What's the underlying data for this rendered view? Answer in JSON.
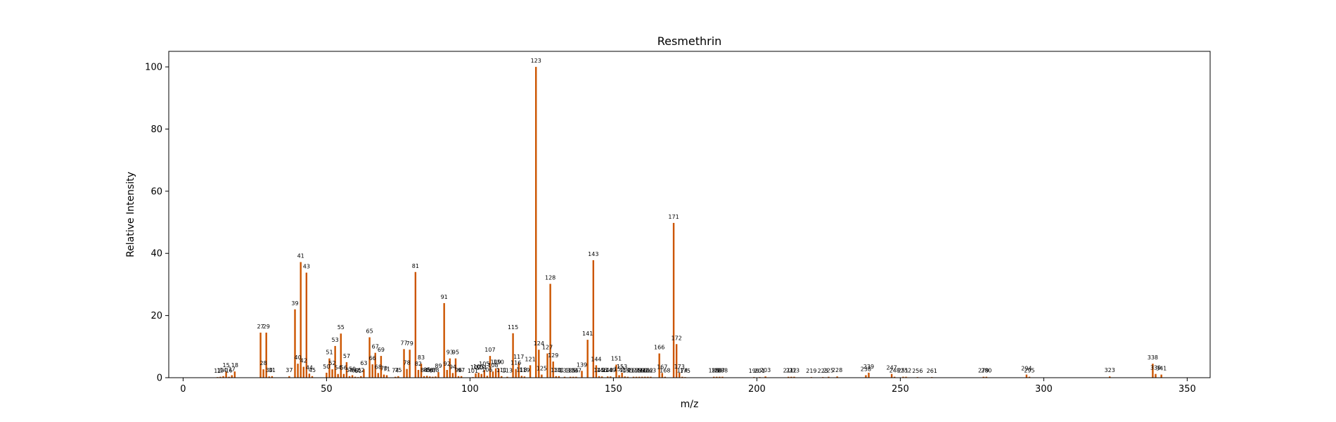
{
  "chart_data": {
    "type": "bar",
    "title": "Resmethrin",
    "xlabel": "m/z",
    "ylabel": "Relative Intensity",
    "xlim": [
      -5,
      358
    ],
    "ylim": [
      0,
      105
    ],
    "xticks": [
      0,
      50,
      100,
      150,
      200,
      250,
      300,
      350
    ],
    "yticks": [
      0,
      20,
      40,
      60,
      80,
      100
    ],
    "bar_color": "#cc5500",
    "peaks": [
      {
        "mz": 12,
        "intensity": 0.2,
        "label": "12"
      },
      {
        "mz": 13,
        "intensity": 0.3,
        "label": "13"
      },
      {
        "mz": 14,
        "intensity": 0.5,
        "label": "14"
      },
      {
        "mz": 15,
        "intensity": 2.0,
        "label": "15"
      },
      {
        "mz": 16,
        "intensity": 0.3,
        "label": "16"
      },
      {
        "mz": 17,
        "intensity": 0.8,
        "label": "17"
      },
      {
        "mz": 18,
        "intensity": 2.0,
        "label": "18"
      },
      {
        "mz": 27,
        "intensity": 14.5,
        "label": "27"
      },
      {
        "mz": 28,
        "intensity": 2.7,
        "label": "28"
      },
      {
        "mz": 29,
        "intensity": 14.5,
        "label": "29"
      },
      {
        "mz": 30,
        "intensity": 0.4,
        "label": "30"
      },
      {
        "mz": 31,
        "intensity": 0.5,
        "label": "31"
      },
      {
        "mz": 37,
        "intensity": 0.5,
        "label": "37"
      },
      {
        "mz": 39,
        "intensity": 22.0,
        "label": "39"
      },
      {
        "mz": 40,
        "intensity": 4.5,
        "label": "40"
      },
      {
        "mz": 41,
        "intensity": 37.2,
        "label": "41"
      },
      {
        "mz": 42,
        "intensity": 3.5,
        "label": "42"
      },
      {
        "mz": 43,
        "intensity": 33.8,
        "label": "43"
      },
      {
        "mz": 44,
        "intensity": 1.3,
        "label": "44"
      },
      {
        "mz": 45,
        "intensity": 0.5,
        "label": "45"
      },
      {
        "mz": 50,
        "intensity": 1.6,
        "label": "50"
      },
      {
        "mz": 51,
        "intensity": 6.2,
        "label": "51"
      },
      {
        "mz": 52,
        "intensity": 2.7,
        "label": "52"
      },
      {
        "mz": 53,
        "intensity": 10.2,
        "label": "53"
      },
      {
        "mz": 54,
        "intensity": 1.2,
        "label": "54"
      },
      {
        "mz": 55,
        "intensity": 14.2,
        "label": "55"
      },
      {
        "mz": 56,
        "intensity": 1.2,
        "label": "56"
      },
      {
        "mz": 57,
        "intensity": 5.0,
        "label": "57"
      },
      {
        "mz": 58,
        "intensity": 0.5,
        "label": "58"
      },
      {
        "mz": 59,
        "intensity": 0.8,
        "label": "59"
      },
      {
        "mz": 60,
        "intensity": 0.3,
        "label": "60"
      },
      {
        "mz": 61,
        "intensity": 0.2,
        "label": "61"
      },
      {
        "mz": 62,
        "intensity": 0.5,
        "label": "62"
      },
      {
        "mz": 63,
        "intensity": 2.7,
        "label": "63"
      },
      {
        "mz": 65,
        "intensity": 13.0,
        "label": "65"
      },
      {
        "mz": 66,
        "intensity": 4.3,
        "label": "66"
      },
      {
        "mz": 67,
        "intensity": 8.0,
        "label": "67"
      },
      {
        "mz": 68,
        "intensity": 1.5,
        "label": "68"
      },
      {
        "mz": 69,
        "intensity": 7.0,
        "label": "69"
      },
      {
        "mz": 70,
        "intensity": 1.0,
        "label": "70"
      },
      {
        "mz": 71,
        "intensity": 0.8,
        "label": "71"
      },
      {
        "mz": 74,
        "intensity": 0.3,
        "label": "74"
      },
      {
        "mz": 75,
        "intensity": 0.5,
        "label": "75"
      },
      {
        "mz": 77,
        "intensity": 9.2,
        "label": "77"
      },
      {
        "mz": 78,
        "intensity": 2.8,
        "label": "78"
      },
      {
        "mz": 79,
        "intensity": 9.0,
        "label": "79"
      },
      {
        "mz": 81,
        "intensity": 34.0,
        "label": "81"
      },
      {
        "mz": 82,
        "intensity": 2.5,
        "label": "82"
      },
      {
        "mz": 83,
        "intensity": 4.5,
        "label": "83"
      },
      {
        "mz": 84,
        "intensity": 0.5,
        "label": "84"
      },
      {
        "mz": 85,
        "intensity": 0.6,
        "label": "85"
      },
      {
        "mz": 86,
        "intensity": 0.4,
        "label": "86"
      },
      {
        "mz": 87,
        "intensity": 0.3,
        "label": "87"
      },
      {
        "mz": 88,
        "intensity": 0.4,
        "label": "88"
      },
      {
        "mz": 89,
        "intensity": 1.8,
        "label": "89"
      },
      {
        "mz": 91,
        "intensity": 24.0,
        "label": "91"
      },
      {
        "mz": 92,
        "intensity": 2.5,
        "label": "92"
      },
      {
        "mz": 93,
        "intensity": 6.2,
        "label": "93"
      },
      {
        "mz": 94,
        "intensity": 1.5,
        "label": "94"
      },
      {
        "mz": 95,
        "intensity": 6.2,
        "label": "95"
      },
      {
        "mz": 96,
        "intensity": 0.5,
        "label": "96"
      },
      {
        "mz": 97,
        "intensity": 0.5,
        "label": "97"
      },
      {
        "mz": 101,
        "intensity": 0.2,
        "label": "101"
      },
      {
        "mz": 102,
        "intensity": 1.4,
        "label": "102"
      },
      {
        "mz": 103,
        "intensity": 1.6,
        "label": "103"
      },
      {
        "mz": 104,
        "intensity": 1.2,
        "label": "104"
      },
      {
        "mz": 105,
        "intensity": 2.5,
        "label": "105"
      },
      {
        "mz": 106,
        "intensity": 0.6,
        "label": "106"
      },
      {
        "mz": 107,
        "intensity": 7.0,
        "label": "107"
      },
      {
        "mz": 108,
        "intensity": 2.0,
        "label": "108"
      },
      {
        "mz": 109,
        "intensity": 3.0,
        "label": "109"
      },
      {
        "mz": 110,
        "intensity": 3.0,
        "label": "110"
      },
      {
        "mz": 111,
        "intensity": 0.5,
        "label": "111"
      },
      {
        "mz": 113,
        "intensity": 0.3,
        "label": "113"
      },
      {
        "mz": 115,
        "intensity": 14.3,
        "label": "115"
      },
      {
        "mz": 116,
        "intensity": 2.8,
        "label": "116"
      },
      {
        "mz": 117,
        "intensity": 4.8,
        "label": "117"
      },
      {
        "mz": 118,
        "intensity": 0.6,
        "label": "118"
      },
      {
        "mz": 119,
        "intensity": 0.4,
        "label": "119"
      },
      {
        "mz": 121,
        "intensity": 4.0,
        "label": "121"
      },
      {
        "mz": 123,
        "intensity": 100.0,
        "label": "123"
      },
      {
        "mz": 124,
        "intensity": 9.0,
        "label": "124"
      },
      {
        "mz": 125,
        "intensity": 1.0,
        "label": "125"
      },
      {
        "mz": 127,
        "intensity": 7.8,
        "label": "127"
      },
      {
        "mz": 128,
        "intensity": 30.2,
        "label": "128"
      },
      {
        "mz": 129,
        "intensity": 5.2,
        "label": "129"
      },
      {
        "mz": 130,
        "intensity": 0.5,
        "label": "130"
      },
      {
        "mz": 131,
        "intensity": 0.5,
        "label": "131"
      },
      {
        "mz": 133,
        "intensity": 0.3,
        "label": "133"
      },
      {
        "mz": 135,
        "intensity": 0.3,
        "label": "135"
      },
      {
        "mz": 136,
        "intensity": 0.3,
        "label": "136"
      },
      {
        "mz": 137,
        "intensity": 0.3,
        "label": "137"
      },
      {
        "mz": 139,
        "intensity": 2.2,
        "label": "139"
      },
      {
        "mz": 141,
        "intensity": 12.2,
        "label": "141"
      },
      {
        "mz": 143,
        "intensity": 37.8,
        "label": "143"
      },
      {
        "mz": 144,
        "intensity": 4.0,
        "label": "144"
      },
      {
        "mz": 145,
        "intensity": 0.5,
        "label": "145"
      },
      {
        "mz": 146,
        "intensity": 0.4,
        "label": "146"
      },
      {
        "mz": 148,
        "intensity": 0.4,
        "label": "148"
      },
      {
        "mz": 149,
        "intensity": 0.4,
        "label": "149"
      },
      {
        "mz": 151,
        "intensity": 4.2,
        "label": "151"
      },
      {
        "mz": 152,
        "intensity": 0.8,
        "label": "152"
      },
      {
        "mz": 153,
        "intensity": 1.6,
        "label": "153"
      },
      {
        "mz": 154,
        "intensity": 0.4,
        "label": "154"
      },
      {
        "mz": 155,
        "intensity": 0.3,
        "label": "155"
      },
      {
        "mz": 157,
        "intensity": 0.3,
        "label": "157"
      },
      {
        "mz": 158,
        "intensity": 0.3,
        "label": "158"
      },
      {
        "mz": 159,
        "intensity": 0.3,
        "label": "159"
      },
      {
        "mz": 160,
        "intensity": 0.3,
        "label": "160"
      },
      {
        "mz": 161,
        "intensity": 0.3,
        "label": "161"
      },
      {
        "mz": 162,
        "intensity": 0.3,
        "label": "162"
      },
      {
        "mz": 163,
        "intensity": 0.3,
        "label": "163"
      },
      {
        "mz": 166,
        "intensity": 7.8,
        "label": "166"
      },
      {
        "mz": 167,
        "intensity": 1.5,
        "label": "167"
      },
      {
        "mz": 168,
        "intensity": 0.3,
        "label": "168"
      },
      {
        "mz": 171,
        "intensity": 49.8,
        "label": "171"
      },
      {
        "mz": 172,
        "intensity": 10.8,
        "label": "172"
      },
      {
        "mz": 173,
        "intensity": 1.6,
        "label": "173"
      },
      {
        "mz": 174,
        "intensity": 0.3,
        "label": "174"
      },
      {
        "mz": 175,
        "intensity": 0.2,
        "label": "175"
      },
      {
        "mz": 185,
        "intensity": 0.3,
        "label": "185"
      },
      {
        "mz": 186,
        "intensity": 0.3,
        "label": "186"
      },
      {
        "mz": 187,
        "intensity": 0.3,
        "label": "187"
      },
      {
        "mz": 188,
        "intensity": 0.3,
        "label": "188"
      },
      {
        "mz": 199,
        "intensity": 0.2,
        "label": "199"
      },
      {
        "mz": 201,
        "intensity": 0.2,
        "label": "201"
      },
      {
        "mz": 203,
        "intensity": 0.4,
        "label": "203"
      },
      {
        "mz": 211,
        "intensity": 0.3,
        "label": "211"
      },
      {
        "mz": 212,
        "intensity": 0.3,
        "label": "212"
      },
      {
        "mz": 213,
        "intensity": 0.3,
        "label": "213"
      },
      {
        "mz": 219,
        "intensity": 0.2,
        "label": "219"
      },
      {
        "mz": 223,
        "intensity": 0.2,
        "label": "223"
      },
      {
        "mz": 225,
        "intensity": 0.3,
        "label": "225"
      },
      {
        "mz": 228,
        "intensity": 0.4,
        "label": "228"
      },
      {
        "mz": 238,
        "intensity": 0.8,
        "label": "238"
      },
      {
        "mz": 239,
        "intensity": 1.6,
        "label": "239"
      },
      {
        "mz": 247,
        "intensity": 1.2,
        "label": "247"
      },
      {
        "mz": 248,
        "intensity": 0.3,
        "label": "248"
      },
      {
        "mz": 251,
        "intensity": 0.3,
        "label": "251"
      },
      {
        "mz": 252,
        "intensity": 0.3,
        "label": "252"
      },
      {
        "mz": 256,
        "intensity": 0.2,
        "label": "256"
      },
      {
        "mz": 261,
        "intensity": 0.2,
        "label": "261"
      },
      {
        "mz": 279,
        "intensity": 0.3,
        "label": "279"
      },
      {
        "mz": 280,
        "intensity": 0.3,
        "label": "280"
      },
      {
        "mz": 294,
        "intensity": 1.0,
        "label": "294"
      },
      {
        "mz": 295,
        "intensity": 0.3,
        "label": "295"
      },
      {
        "mz": 323,
        "intensity": 0.4,
        "label": "323"
      },
      {
        "mz": 338,
        "intensity": 4.5,
        "label": "338"
      },
      {
        "mz": 339,
        "intensity": 1.2,
        "label": "339"
      },
      {
        "mz": 341,
        "intensity": 1.0,
        "label": "341"
      }
    ]
  }
}
